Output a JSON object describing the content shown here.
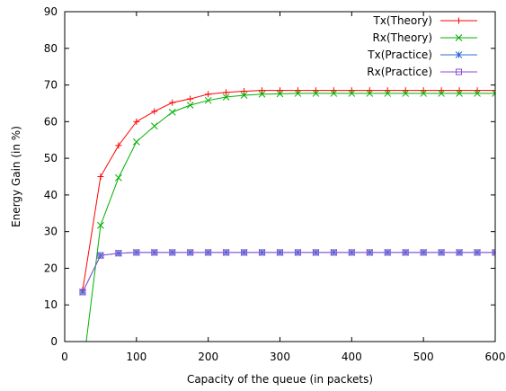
{
  "chart_data": {
    "type": "line",
    "title": "",
    "xlabel": "Capacity of the queue (in packets)",
    "ylabel": "Energy Gain (in %)",
    "xlim": [
      0,
      600
    ],
    "ylim": [
      0,
      90
    ],
    "xticks": [
      0,
      100,
      200,
      300,
      400,
      500,
      600
    ],
    "yticks": [
      0,
      10,
      20,
      30,
      40,
      50,
      60,
      70,
      80,
      90
    ],
    "grid": false,
    "legend_position": "top-right",
    "x": [
      25,
      50,
      75,
      100,
      125,
      150,
      175,
      200,
      225,
      250,
      275,
      300,
      325,
      350,
      375,
      400,
      425,
      450,
      475,
      500,
      525,
      550,
      575,
      600
    ],
    "series": [
      {
        "name": "Tx(Theory)",
        "color": "#ff0000",
        "marker": "plus",
        "values": [
          14,
          45,
          53.5,
          60,
          62.8,
          65.2,
          66.2,
          67.5,
          68.0,
          68.3,
          68.5,
          68.5,
          68.5,
          68.5,
          68.5,
          68.5,
          68.5,
          68.5,
          68.5,
          68.5,
          68.5,
          68.5,
          68.5,
          68.5
        ]
      },
      {
        "name": "Rx(Theory)",
        "color": "#00b000",
        "marker": "x",
        "values": [
          -8,
          31.7,
          44.7,
          54.5,
          58.8,
          62.6,
          64.5,
          65.8,
          66.7,
          67.2,
          67.5,
          67.6,
          67.7,
          67.7,
          67.7,
          67.7,
          67.7,
          67.7,
          67.7,
          67.7,
          67.7,
          67.7,
          67.7,
          67.7
        ]
      },
      {
        "name": "Tx(Practice)",
        "color": "#2b6cd4",
        "marker": "star",
        "values": [
          13.5,
          23.5,
          24.1,
          24.3,
          24.3,
          24.3,
          24.3,
          24.3,
          24.3,
          24.3,
          24.3,
          24.3,
          24.3,
          24.3,
          24.3,
          24.3,
          24.3,
          24.3,
          24.3,
          24.3,
          24.3,
          24.3,
          24.3,
          24.3
        ]
      },
      {
        "name": "Rx(Practice)",
        "color": "#8a4fd0",
        "marker": "square",
        "values": [
          13.5,
          23.5,
          24.1,
          24.3,
          24.3,
          24.3,
          24.3,
          24.3,
          24.3,
          24.3,
          24.3,
          24.3,
          24.3,
          24.3,
          24.3,
          24.3,
          24.3,
          24.3,
          24.3,
          24.3,
          24.3,
          24.3,
          24.3,
          24.3
        ]
      }
    ]
  }
}
